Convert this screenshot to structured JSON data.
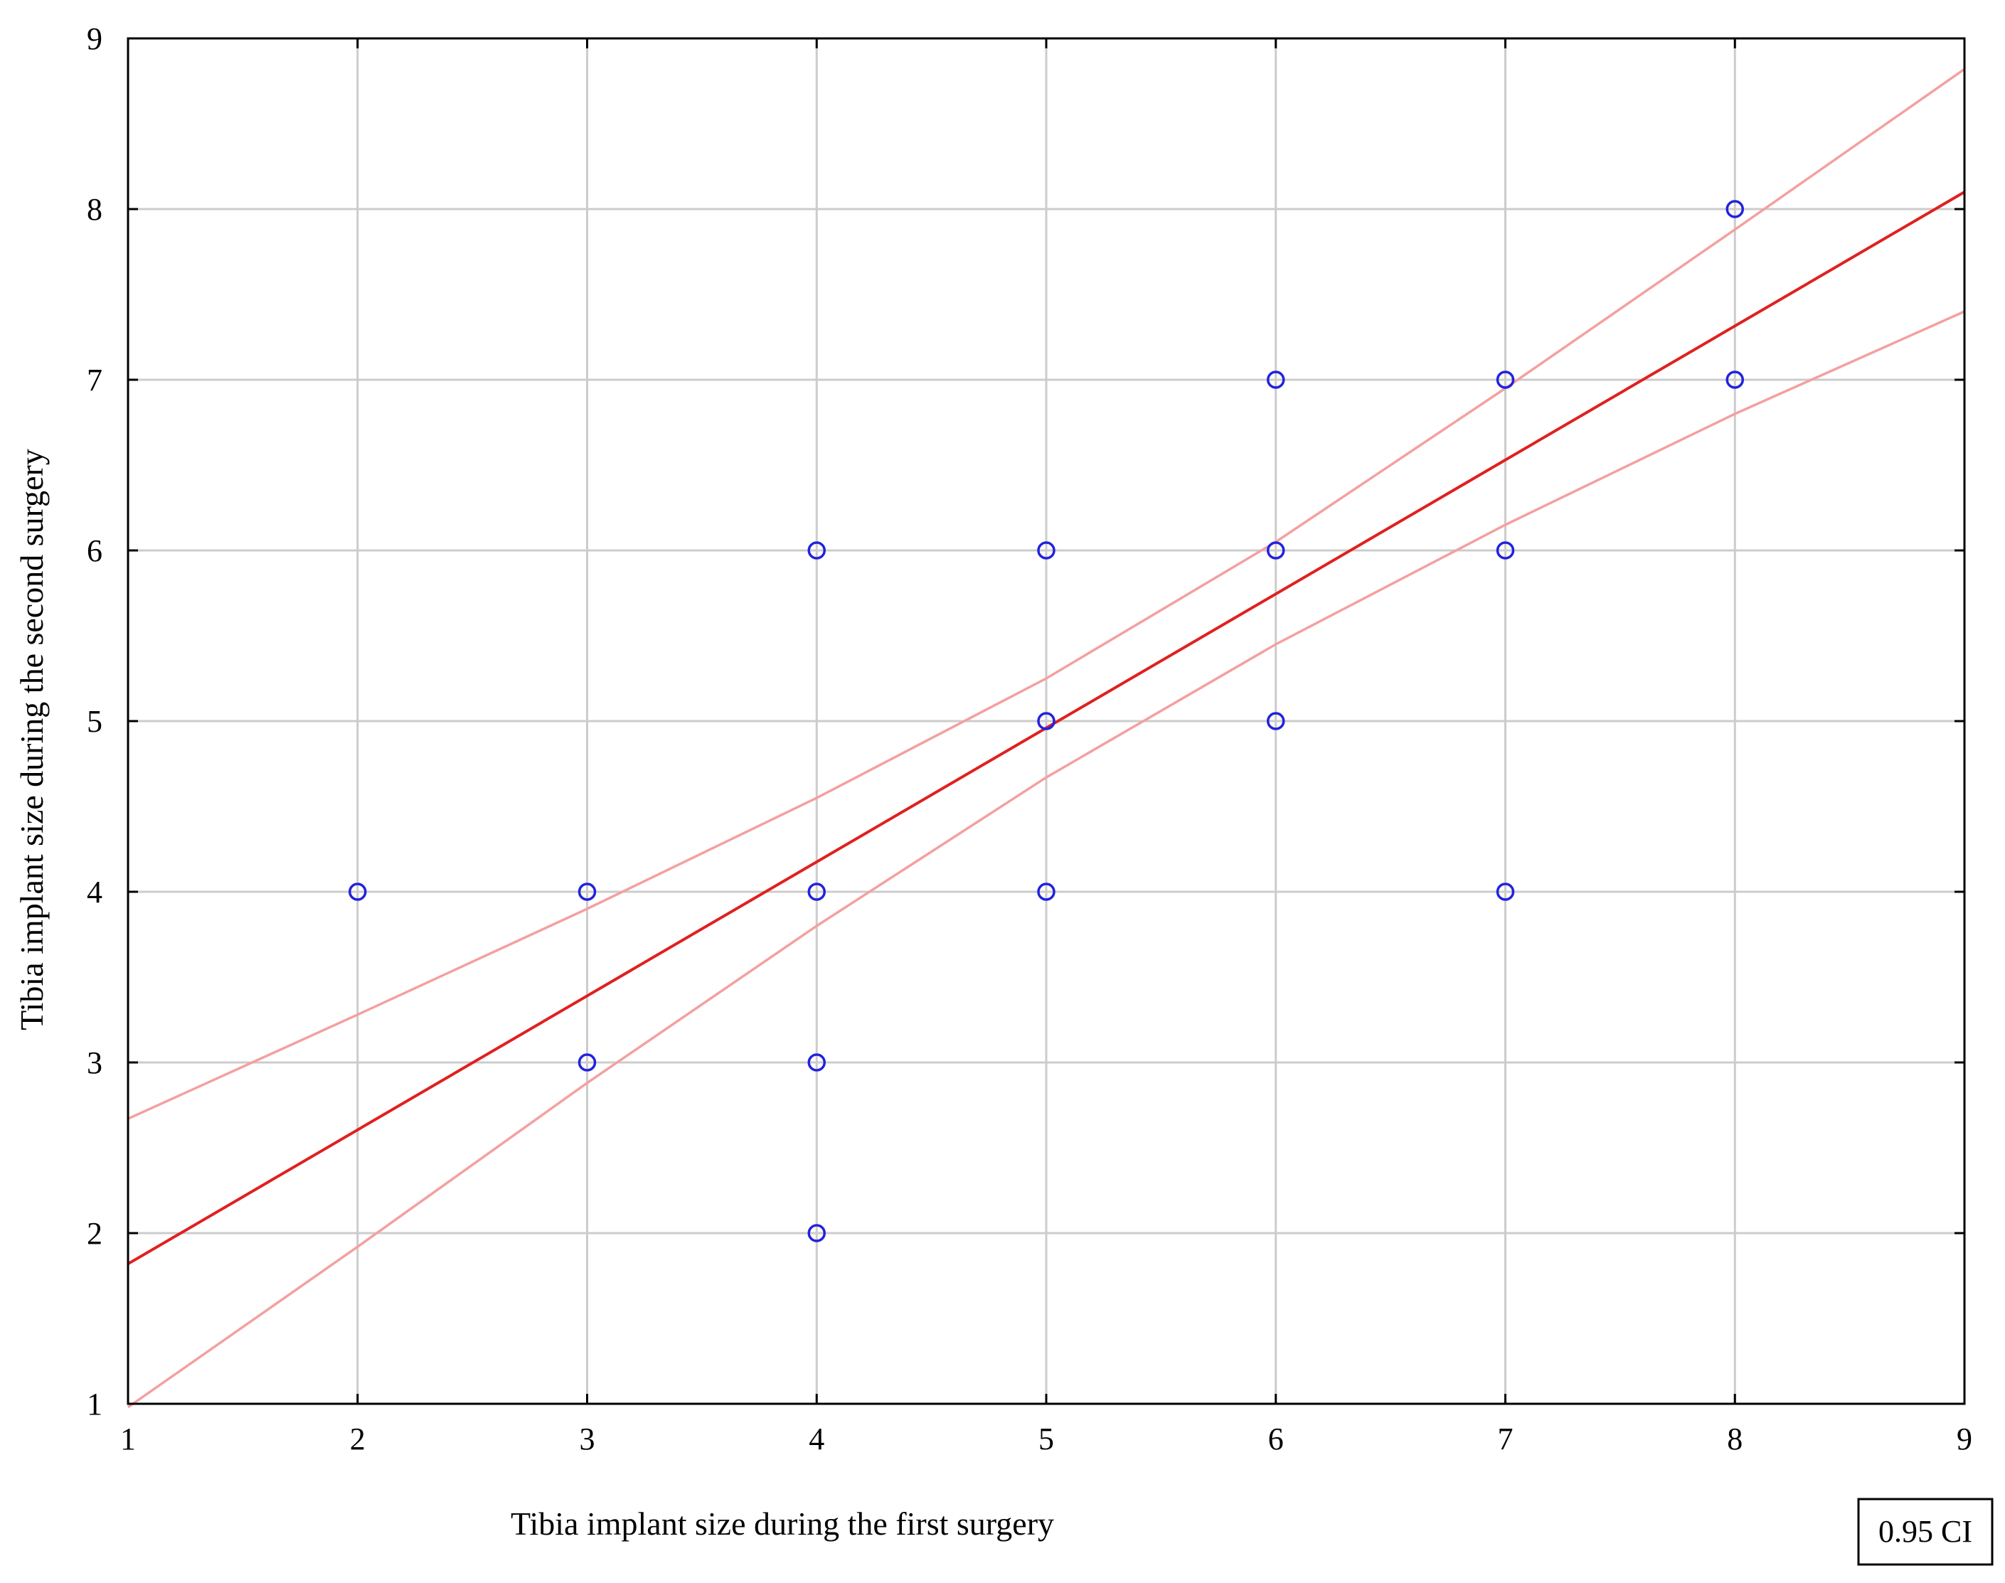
{
  "chart_data": {
    "type": "scatter",
    "title": "",
    "xlabel": "Tibia implant size during the first surgery",
    "ylabel": "Tibia implant size during the second surgery",
    "xlim": [
      1,
      9
    ],
    "ylim": [
      1,
      9
    ],
    "x_ticks": [
      "1",
      "2",
      "3",
      "4",
      "5",
      "6",
      "7",
      "8",
      "9"
    ],
    "y_ticks": [
      "1",
      "2",
      "3",
      "4",
      "5",
      "6",
      "7",
      "8",
      "9"
    ],
    "grid": true,
    "legend": {
      "placement": "bottom-right",
      "label": "0.95 CI"
    },
    "points": [
      {
        "x": 2,
        "y": 4
      },
      {
        "x": 3,
        "y": 4
      },
      {
        "x": 3,
        "y": 3
      },
      {
        "x": 4,
        "y": 6
      },
      {
        "x": 4,
        "y": 4
      },
      {
        "x": 4,
        "y": 3
      },
      {
        "x": 4,
        "y": 2
      },
      {
        "x": 5,
        "y": 6
      },
      {
        "x": 5,
        "y": 5
      },
      {
        "x": 5,
        "y": 4
      },
      {
        "x": 6,
        "y": 7
      },
      {
        "x": 6,
        "y": 6
      },
      {
        "x": 6,
        "y": 5
      },
      {
        "x": 7,
        "y": 7
      },
      {
        "x": 7,
        "y": 6
      },
      {
        "x": 7,
        "y": 4
      },
      {
        "x": 8,
        "y": 8
      },
      {
        "x": 8,
        "y": 7
      }
    ],
    "fit_line": {
      "x": [
        1,
        9
      ],
      "y": [
        1.82,
        8.1
      ]
    },
    "ci_upper": {
      "x": [
        1,
        2,
        3,
        4,
        5,
        6,
        7,
        8,
        9
      ],
      "y": [
        2.67,
        3.28,
        3.9,
        4.55,
        5.25,
        6.05,
        6.95,
        7.88,
        8.82
      ]
    },
    "ci_lower": {
      "x": [
        1,
        2,
        3,
        4,
        5,
        6,
        7,
        8,
        9
      ],
      "y": [
        0.98,
        1.92,
        2.88,
        3.8,
        4.67,
        5.45,
        6.15,
        6.8,
        7.4
      ]
    },
    "colors": {
      "points": "#2222dd",
      "fit": "#e02020",
      "ci": "#f4a0a0",
      "grid": "#cccccc",
      "frame": "#000000"
    }
  }
}
